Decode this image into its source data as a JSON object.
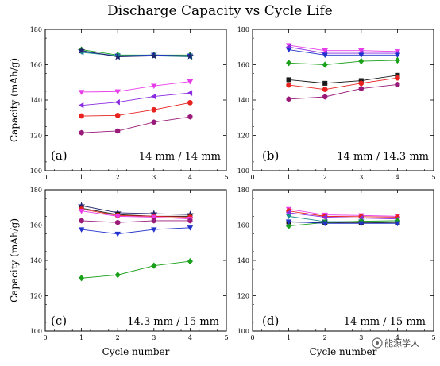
{
  "title": "Discharge Capacity vs Cycle Life",
  "watermark": "能源学人",
  "colors": {
    "black": "#1a1a1a",
    "red": "#e8231f",
    "blue": "#2233cc",
    "teal": "#1a8c8c",
    "magenta": "#e83ce8",
    "purple": "#8a2be2",
    "darkmagenta": "#9a1a7a",
    "green": "#1aa01a",
    "navy": "#22226e"
  },
  "chart_data": [
    {
      "type": "line",
      "panel_label": "(a)",
      "annotation": "14 mm / 14 mm",
      "xlabel": "",
      "ylabel": "Capacity (mAh/g)",
      "xlim": [
        0,
        5
      ],
      "ylim": [
        100,
        180
      ],
      "xticks": [
        "0",
        "1",
        "2",
        "3",
        "4",
        "5"
      ],
      "yticks": [
        "100",
        "120",
        "140",
        "160",
        "180"
      ],
      "x": [
        1,
        2,
        3,
        4
      ],
      "series": [
        {
          "color": "green",
          "marker": "diamond",
          "values": [
            168.5,
            165.5,
            165.5,
            165.5
          ]
        },
        {
          "color": "blue",
          "marker": "triangle-down",
          "values": [
            167.5,
            165.0,
            165.5,
            165.0
          ]
        },
        {
          "color": "teal",
          "marker": "triangle-left",
          "values": [
            167.0,
            165.0,
            165.0,
            164.5
          ]
        },
        {
          "color": "navy",
          "marker": "star",
          "values": [
            168.0,
            164.5,
            165.0,
            164.8
          ]
        },
        {
          "color": "magenta",
          "marker": "triangle-down",
          "values": [
            144.5,
            144.8,
            148.0,
            150.5
          ]
        },
        {
          "color": "purple",
          "marker": "triangle-left",
          "values": [
            137.0,
            138.8,
            142.0,
            144.0
          ]
        },
        {
          "color": "red",
          "marker": "circle",
          "values": [
            131.0,
            131.3,
            134.5,
            138.5
          ]
        },
        {
          "color": "darkmagenta",
          "marker": "hexagon",
          "values": [
            121.5,
            122.5,
            127.5,
            130.5
          ]
        }
      ]
    },
    {
      "type": "line",
      "panel_label": "(b)",
      "annotation": "14 mm / 14.3 mm",
      "xlabel": "",
      "ylabel": "",
      "xlim": [
        0,
        5
      ],
      "ylim": [
        100,
        180
      ],
      "xticks": [
        "0",
        "1",
        "2",
        "3",
        "4",
        "5"
      ],
      "yticks": [
        "100",
        "120",
        "140",
        "160",
        "180"
      ],
      "x": [
        1,
        2,
        3,
        4
      ],
      "series": [
        {
          "color": "magenta",
          "marker": "triangle-down",
          "values": [
            171.0,
            168.0,
            168.0,
            167.5
          ]
        },
        {
          "color": "purple",
          "marker": "triangle-left",
          "values": [
            170.0,
            166.5,
            166.5,
            166.5
          ]
        },
        {
          "color": "blue",
          "marker": "triangle-down",
          "values": [
            168.5,
            165.5,
            165.5,
            165.5
          ]
        },
        {
          "color": "green",
          "marker": "diamond",
          "values": [
            161.0,
            160.0,
            162.0,
            162.5
          ]
        },
        {
          "color": "black",
          "marker": "square",
          "values": [
            151.5,
            149.5,
            151.0,
            154.0
          ]
        },
        {
          "color": "red",
          "marker": "circle",
          "values": [
            148.5,
            146.0,
            149.5,
            152.5
          ]
        },
        {
          "color": "darkmagenta",
          "marker": "hexagon",
          "values": [
            140.5,
            141.8,
            146.5,
            148.8
          ]
        }
      ]
    },
    {
      "type": "line",
      "panel_label": "(c)",
      "annotation": "14.3 mm / 15 mm",
      "xlabel": "Cycle number",
      "ylabel": "Capacity (mAh/g)",
      "xlim": [
        0,
        5
      ],
      "ylim": [
        100,
        180
      ],
      "xticks": [
        "0",
        "1",
        "2",
        "3",
        "4",
        "5"
      ],
      "yticks": [
        "100",
        "120",
        "140",
        "160",
        "180"
      ],
      "x": [
        1,
        2,
        3,
        4
      ],
      "series": [
        {
          "color": "navy",
          "marker": "star",
          "values": [
            171.0,
            167.0,
            166.5,
            166.0
          ]
        },
        {
          "color": "black",
          "marker": "square",
          "values": [
            169.5,
            166.0,
            165.0,
            165.0
          ]
        },
        {
          "color": "red",
          "marker": "circle",
          "values": [
            169.0,
            165.5,
            165.0,
            164.5
          ]
        },
        {
          "color": "magenta",
          "marker": "triangle-down",
          "values": [
            168.0,
            165.0,
            164.5,
            163.5
          ]
        },
        {
          "color": "darkmagenta",
          "marker": "hexagon",
          "values": [
            162.5,
            161.5,
            162.5,
            162.5
          ]
        },
        {
          "color": "blue",
          "marker": "triangle-down",
          "values": [
            157.5,
            155.0,
            157.5,
            158.5
          ]
        },
        {
          "color": "green",
          "marker": "diamond",
          "values": [
            130.0,
            131.8,
            137.0,
            139.5
          ]
        }
      ]
    },
    {
      "type": "line",
      "panel_label": "(d)",
      "annotation": "14 mm / 15 mm",
      "xlabel": "Cycle number",
      "ylabel": "",
      "xlim": [
        0,
        5
      ],
      "ylim": [
        100,
        180
      ],
      "xticks": [
        "0",
        "1",
        "2",
        "3",
        "4",
        "5"
      ],
      "yticks": [
        "100",
        "120",
        "140",
        "160",
        "180"
      ],
      "x": [
        1,
        2,
        3,
        4
      ],
      "series": [
        {
          "color": "magenta",
          "marker": "triangle-down",
          "values": [
            169.0,
            165.8,
            165.5,
            165.0
          ]
        },
        {
          "color": "red",
          "marker": "circle",
          "values": [
            168.0,
            165.0,
            164.8,
            164.5
          ]
        },
        {
          "color": "purple",
          "marker": "triangle-left",
          "values": [
            167.0,
            164.5,
            164.0,
            163.5
          ]
        },
        {
          "color": "teal",
          "marker": "triangle-down",
          "values": [
            165.0,
            162.0,
            162.0,
            161.8
          ]
        },
        {
          "color": "black",
          "marker": "square",
          "values": [
            161.8,
            161.3,
            161.5,
            161.2
          ]
        },
        {
          "color": "green",
          "marker": "diamond",
          "values": [
            159.5,
            161.5,
            162.2,
            162.5
          ]
        },
        {
          "color": "blue",
          "marker": "triangle-down",
          "values": [
            162.0,
            161.0,
            161.0,
            161.0
          ]
        }
      ]
    }
  ]
}
